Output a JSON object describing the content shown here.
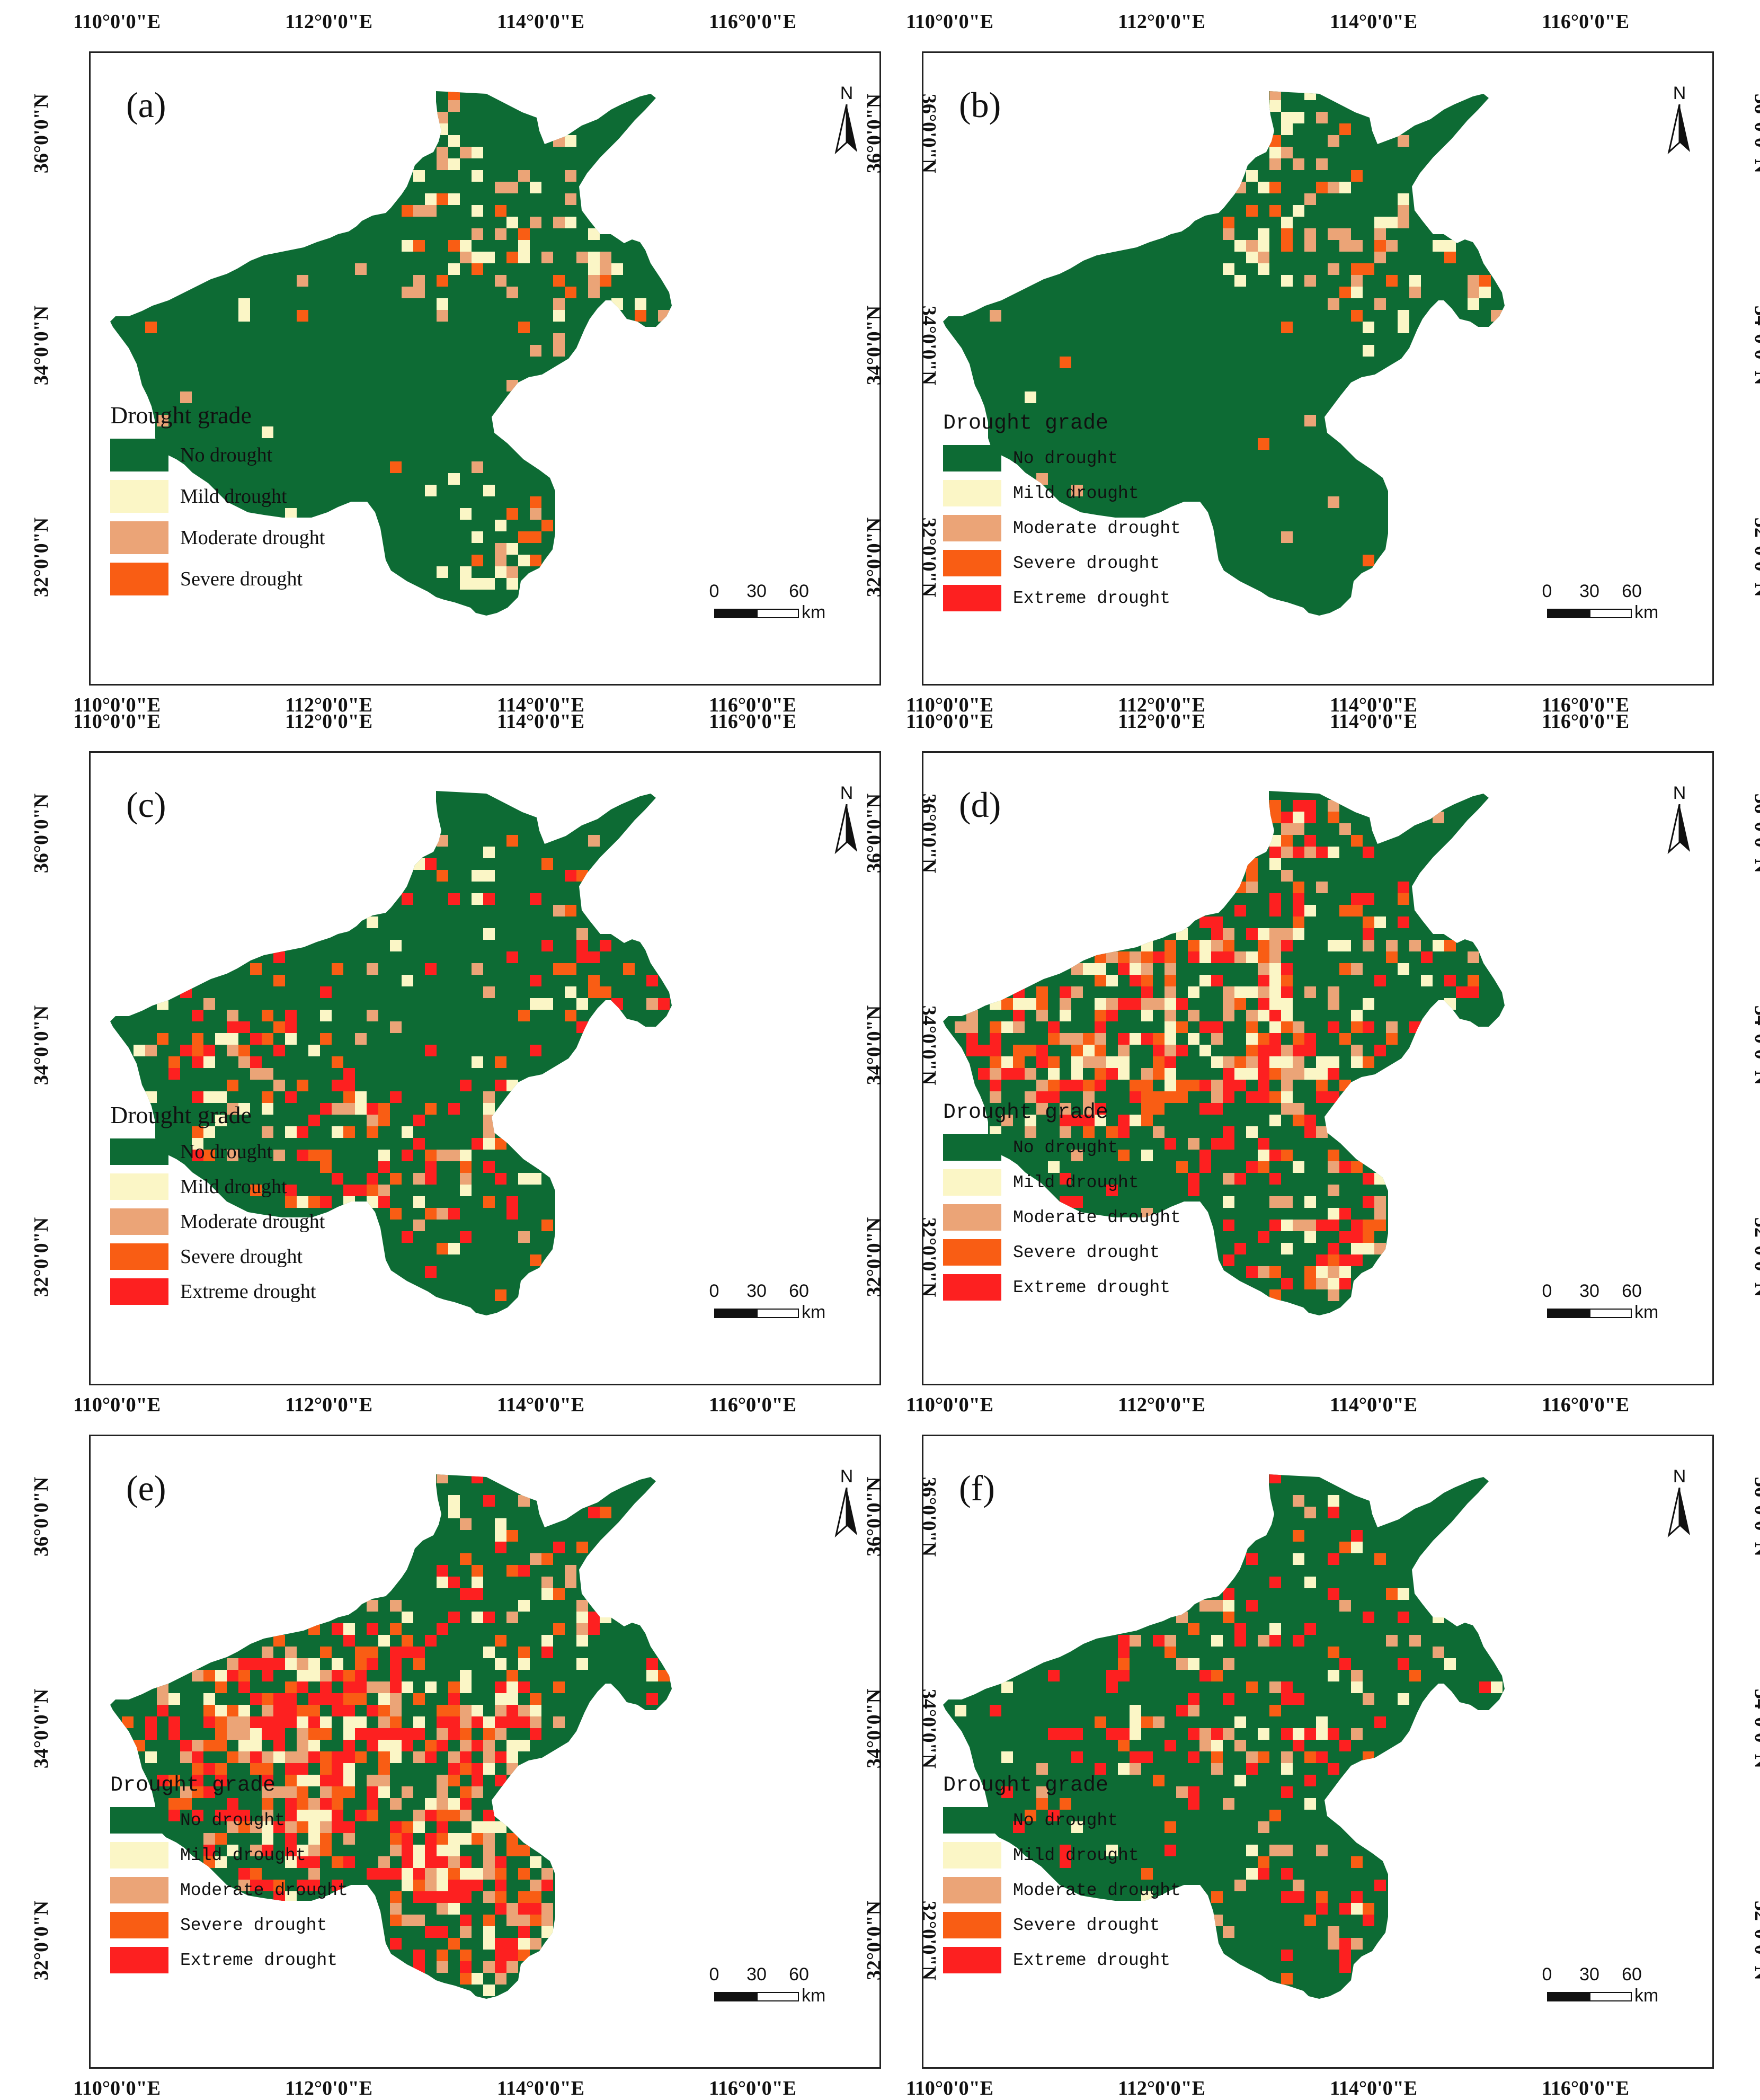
{
  "figure": {
    "lon_labels": [
      "110°0'0\"E",
      "112°0'0\"E",
      "114°0'0\"E",
      "116°0'0\"E"
    ],
    "lat_labels": [
      "36°0'0\"N",
      "34°0'0\"N",
      "32°0'0\"N"
    ],
    "north_label": "N",
    "scale": {
      "ticks": [
        "0",
        "30",
        "60"
      ],
      "unit": "km"
    },
    "legend_title": "Drought grade",
    "grades": [
      {
        "label": "No drought",
        "color": "#0d6b34"
      },
      {
        "label": "Mild drought",
        "color": "#fbf6c6"
      },
      {
        "label": "Moderate drought",
        "color": "#eba477"
      },
      {
        "label": "Severe drought",
        "color": "#f95d14"
      },
      {
        "label": "Extreme drought",
        "color": "#fd2020"
      }
    ]
  },
  "panels": [
    {
      "label": "(a)",
      "legend_grades": 4,
      "drought_intensity": "very low",
      "hotspots": [
        "north-central",
        "east",
        "south"
      ]
    },
    {
      "label": "(b)",
      "legend_grades": 5,
      "drought_intensity": "very low",
      "hotspots": [
        "north-central",
        "east"
      ]
    },
    {
      "label": "(c)",
      "legend_grades": 5,
      "drought_intensity": "moderate",
      "hotspots": [
        "west",
        "south-central",
        "east"
      ]
    },
    {
      "label": "(d)",
      "legend_grades": 5,
      "drought_intensity": "high",
      "hotspots": [
        "west",
        "central",
        "south",
        "north"
      ]
    },
    {
      "label": "(e)",
      "legend_grades": 5,
      "drought_intensity": "very high",
      "hotspots": [
        "widespread"
      ]
    },
    {
      "label": "(f)",
      "legend_grades": 5,
      "drought_intensity": "moderate",
      "hotspots": [
        "north",
        "central",
        "south"
      ]
    }
  ]
}
